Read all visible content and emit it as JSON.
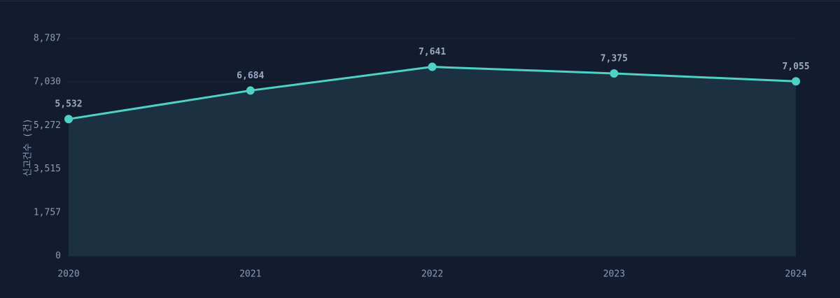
{
  "chart_data": {
    "type": "line",
    "y_label": "신고건수 (건)",
    "categories": [
      "2020",
      "2021",
      "2022",
      "2023",
      "2024"
    ],
    "values": [
      5532,
      6684,
      7641,
      7375,
      7055
    ],
    "value_labels": [
      "5,532",
      "6,684",
      "7,641",
      "7,375",
      "7,055"
    ],
    "color": "#4fd1c5",
    "ylim": [
      0,
      8787
    ],
    "yticks": [
      0,
      {
        "value": 1757,
        "label": "1,757"
      },
      {
        "value": 3515,
        "label": "3,515"
      },
      {
        "value": 5272,
        "label": "5,272"
      },
      {
        "value": 7030,
        "label": "7,030"
      },
      {
        "value": 8787,
        "label": "8,787"
      }
    ],
    "grid": true,
    "area": true
  }
}
